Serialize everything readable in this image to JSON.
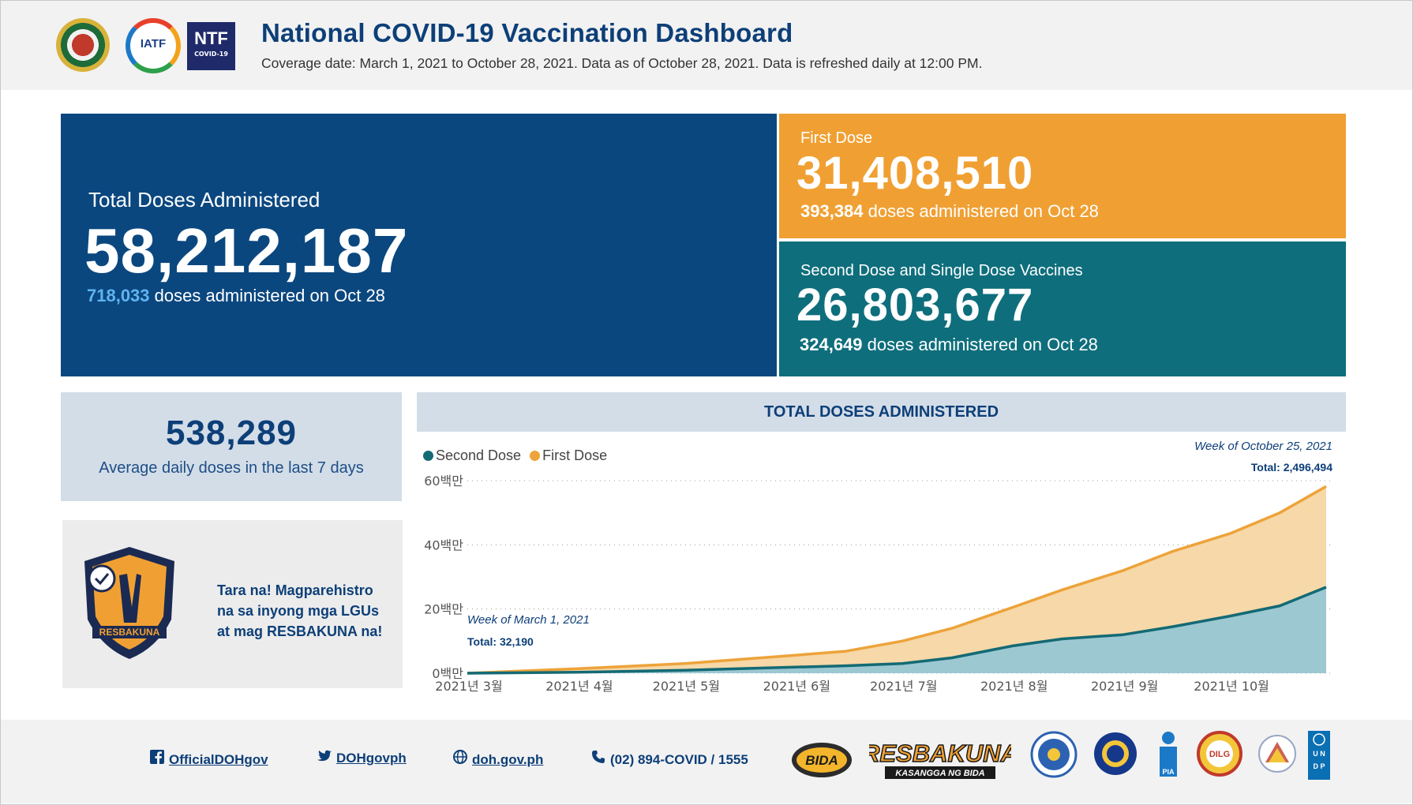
{
  "header": {
    "title": "National COVID-19 Vaccination Dashboard",
    "subtitle": "Coverage date: March 1, 2021 to October 28, 2021. Data as of October 28, 2021. Data is refreshed daily at 12:00 PM.",
    "logos": {
      "iatf": "IATF",
      "ntf_big": "NTF",
      "ntf_small": "COVID-19"
    }
  },
  "kpis": {
    "total": {
      "label": "Total Doses Administered",
      "value": "58,212,187",
      "daily": "718,033",
      "daily_suffix": " doses administered on Oct 28"
    },
    "first": {
      "label": "First Dose",
      "value": "31,408,510",
      "daily": "393,384",
      "daily_suffix": " doses administered on Oct 28"
    },
    "second": {
      "label": "Second Dose and Single Dose Vaccines",
      "value": "26,803,677",
      "daily": "324,649",
      "daily_suffix": " doses administered on Oct 28"
    }
  },
  "average": {
    "value": "538,289",
    "label": "Average daily doses in the last 7 days"
  },
  "promo": {
    "line1": "Tara na! Magparehistro",
    "line2": "na sa inyong mga LGUs",
    "line3": "at mag RESBAKUNA na!",
    "badge_text": "RESBAKUNA"
  },
  "chart_title": "TOTAL DOSES ADMINISTERED",
  "colors": {
    "navy": "#0b477f",
    "orange": "#f0a033",
    "teal": "#0e6e7c",
    "first_fill": "#f7d8a8",
    "second_fill": "#9cc8d2",
    "first_line": "#eda33a",
    "second_line": "#136a74"
  },
  "chart_data": {
    "type": "area",
    "ylim": [
      0,
      60000000
    ],
    "yticks": [
      0,
      20000000,
      40000000,
      60000000
    ],
    "ytick_labels": [
      "0백만",
      "20백만",
      "40백만",
      "60백만"
    ],
    "xtick_labels": [
      "2021년 3월",
      "2021년 4월",
      "2021년 5월",
      "2021년 6월",
      "2021년 7월",
      "2021년 8월",
      "2021년 9월",
      "2021년 10월"
    ],
    "x_start": "2021-03-01",
    "x_end": "2021-10-28",
    "xtick_dates": [
      "2021-03-01",
      "2021-04-01",
      "2021-05-01",
      "2021-06-01",
      "2021-07-01",
      "2021-08-01",
      "2021-09-01",
      "2021-10-01"
    ],
    "series": [
      {
        "name": "Second Dose",
        "x": [
          "2021-03-01",
          "2021-04-01",
          "2021-05-01",
          "2021-06-01",
          "2021-06-15",
          "2021-07-01",
          "2021-07-15",
          "2021-08-01",
          "2021-08-15",
          "2021-09-01",
          "2021-09-15",
          "2021-10-01",
          "2021-10-15",
          "2021-10-28"
        ],
        "values": [
          0,
          300000,
          900000,
          1900000,
          2300000,
          3000000,
          4800000,
          8500000,
          10700000,
          12000000,
          14500000,
          17800000,
          21000000,
          26800000
        ]
      },
      {
        "name": "First Dose",
        "x": [
          "2021-03-01",
          "2021-04-01",
          "2021-05-01",
          "2021-06-01",
          "2021-06-15",
          "2021-07-01",
          "2021-07-15",
          "2021-08-01",
          "2021-08-15",
          "2021-09-01",
          "2021-09-15",
          "2021-10-01",
          "2021-10-15",
          "2021-10-28"
        ],
        "values": [
          0,
          1400000,
          3000000,
          5600000,
          6800000,
          10000000,
          14000000,
          20500000,
          26000000,
          32000000,
          38000000,
          43500000,
          50000000,
          58200000
        ]
      }
    ],
    "annotations": {
      "start": {
        "week": "Week of March 1, 2021",
        "total": "Total: 32,190"
      },
      "end": {
        "week": "Week of October 25, 2021",
        "total": "Total: 2,496,494"
      }
    }
  },
  "footer": {
    "facebook": "OfficialDOHgov",
    "twitter": "DOHgovph",
    "web": "doh.gov.ph",
    "phone": "(02) 894-COVID / 1555",
    "resbakuna_logo": "RESBAKUNA",
    "resbakuna_tag": "KASANGGA NG BIDA",
    "bida_logo": "BIDA",
    "dilg": "DILG",
    "pia": "PIA",
    "undp": "UNDP"
  }
}
